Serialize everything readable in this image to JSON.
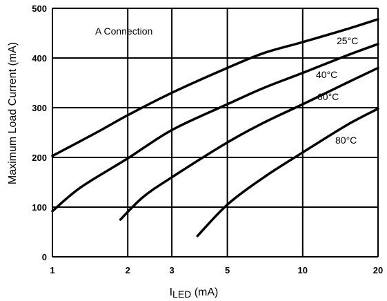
{
  "chart_data": {
    "type": "line",
    "xscale": "log",
    "xlim": [
      1,
      20
    ],
    "ylim": [
      0,
      500
    ],
    "xticks": [
      1,
      2,
      3,
      5,
      10,
      20
    ],
    "yticks": [
      0,
      100,
      200,
      300,
      400,
      500
    ],
    "xtick_labels": [
      "1",
      "2",
      "3",
      "5",
      "10",
      "20"
    ],
    "ytick_labels": [
      "0",
      "100",
      "200",
      "300",
      "400",
      "500"
    ],
    "ylabel": "Maximum Load Current (mA)",
    "xlabel": {
      "prefix": "I",
      "subscript": "LED",
      "suffix": " (mA)"
    },
    "annotation": "A Connection",
    "grid": true,
    "series": [
      {
        "name": "25°C",
        "points": [
          [
            1,
            203
          ],
          [
            1.5,
            250
          ],
          [
            2,
            285
          ],
          [
            3,
            330
          ],
          [
            5,
            380
          ],
          [
            7,
            410
          ],
          [
            10,
            432
          ],
          [
            15,
            458
          ],
          [
            20,
            478
          ]
        ]
      },
      {
        "name": "40°C",
        "points": [
          [
            1,
            92
          ],
          [
            1.3,
            140
          ],
          [
            2,
            198
          ],
          [
            3,
            255
          ],
          [
            5,
            307
          ],
          [
            7,
            340
          ],
          [
            10,
            370
          ],
          [
            15,
            405
          ],
          [
            20,
            428
          ]
        ]
      },
      {
        "name": "60°C",
        "points": [
          [
            1.87,
            75
          ],
          [
            2.3,
            120
          ],
          [
            3,
            160
          ],
          [
            5,
            230
          ],
          [
            7,
            270
          ],
          [
            10,
            307
          ],
          [
            15,
            350
          ],
          [
            20,
            380
          ]
        ]
      },
      {
        "name": "80°C",
        "points": [
          [
            3.8,
            42
          ],
          [
            5,
            105
          ],
          [
            7,
            160
          ],
          [
            10,
            210
          ],
          [
            15,
            265
          ],
          [
            20,
            298
          ]
        ]
      }
    ]
  }
}
